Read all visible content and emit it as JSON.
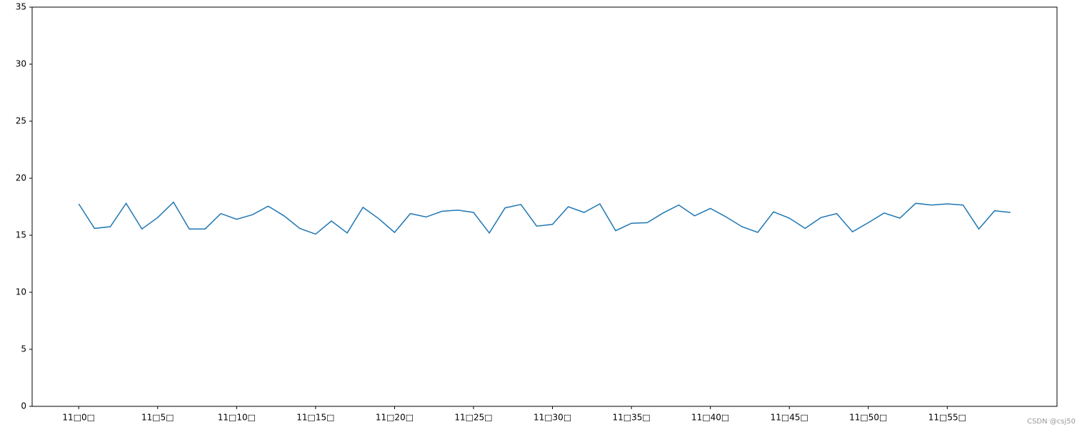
{
  "chart_data": {
    "type": "line",
    "categories": [
      "11□0□",
      null,
      null,
      null,
      null,
      "11□5□",
      null,
      null,
      null,
      null,
      "11□10□",
      null,
      null,
      null,
      null,
      "11□15□",
      null,
      null,
      null,
      null,
      "11□20□",
      null,
      null,
      null,
      null,
      "11□25□",
      null,
      null,
      null,
      null,
      "11□30□",
      null,
      null,
      null,
      null,
      "11□35□",
      null,
      null,
      null,
      null,
      "11□40□",
      null,
      null,
      null,
      null,
      "11□45□",
      null,
      null,
      null,
      null,
      "11□50□",
      null,
      null,
      null,
      null,
      "11□55□",
      null,
      null,
      null,
      null
    ],
    "values": [
      17.75,
      15.6,
      15.75,
      17.8,
      15.55,
      16.55,
      17.9,
      15.55,
      15.55,
      16.9,
      16.4,
      16.8,
      17.55,
      16.7,
      15.6,
      15.1,
      16.25,
      15.2,
      17.45,
      16.45,
      15.25,
      16.9,
      16.6,
      17.1,
      17.2,
      17.0,
      15.2,
      17.4,
      17.7,
      15.8,
      15.95,
      17.5,
      17.0,
      17.75,
      15.4,
      16.05,
      16.1,
      16.95,
      17.65,
      16.7,
      17.35,
      16.6,
      15.75,
      15.25,
      17.05,
      16.5,
      15.6,
      16.55,
      16.9,
      15.3,
      16.1,
      16.95,
      16.5,
      17.8,
      17.65,
      17.75,
      17.65,
      15.55,
      17.15,
      17.0
    ],
    "color": "#1f77b4",
    "ylim": [
      0,
      35
    ],
    "yticks": [
      0,
      5,
      10,
      15,
      20,
      25,
      30,
      35
    ],
    "watermark": "CSDN @csj50"
  }
}
